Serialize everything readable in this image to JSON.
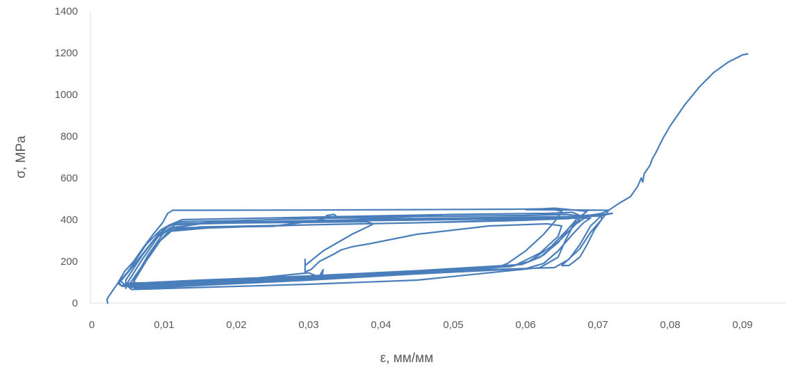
{
  "chart_data": {
    "type": "line",
    "title": "",
    "xlabel": "ε, мм/мм",
    "ylabel": "σ, MPa",
    "xlim": [
      0,
      0.095
    ],
    "ylim": [
      0,
      1400
    ],
    "x_ticks": [
      "0",
      "0,01",
      "0,02",
      "0,03",
      "0,04",
      "0,05",
      "0,06",
      "0,07",
      "0,08",
      "0,09"
    ],
    "y_ticks": [
      "0",
      "200",
      "400",
      "600",
      "800",
      "1000",
      "1200",
      "1400"
    ],
    "grid": false,
    "legend": "none",
    "colors": {
      "series": "#4a7ebb",
      "axis": "#d9d9d9",
      "text": "#595959"
    },
    "series": [
      {
        "points": [
          [
            0.0022,
            0
          ],
          [
            0.0021,
            15
          ],
          [
            0.0023,
            30
          ],
          [
            0.0028,
            55
          ],
          [
            0.0035,
            90
          ],
          [
            0.0045,
            150
          ],
          [
            0.0058,
            200
          ],
          [
            0.0072,
            270
          ],
          [
            0.0085,
            330
          ],
          [
            0.0098,
            385
          ],
          [
            0.0105,
            430
          ],
          [
            0.0112,
            445
          ],
          [
            0.016,
            445
          ],
          [
            0.03,
            446
          ],
          [
            0.045,
            448
          ],
          [
            0.058,
            450
          ],
          [
            0.0635,
            452
          ],
          [
            0.065,
            440
          ],
          [
            0.064,
            390
          ],
          [
            0.0625,
            330
          ],
          [
            0.06,
            250
          ],
          [
            0.0575,
            190
          ],
          [
            0.056,
            170
          ],
          [
            0.045,
            145
          ],
          [
            0.03,
            115
          ],
          [
            0.015,
            95
          ],
          [
            0.0042,
            80
          ],
          [
            0.0036,
            95
          ],
          [
            0.005,
            150
          ],
          [
            0.0075,
            280
          ],
          [
            0.0095,
            350
          ],
          [
            0.0108,
            375
          ],
          [
            0.012,
            382
          ],
          [
            0.02,
            384
          ],
          [
            0.03,
            387
          ],
          [
            0.038,
            390
          ],
          [
            0.039,
            380
          ],
          [
            0.036,
            330
          ],
          [
            0.032,
            250
          ],
          [
            0.0295,
            180
          ],
          [
            0.0295,
            210
          ],
          [
            0.0295,
            150
          ],
          [
            0.0303,
            160
          ],
          [
            0.0315,
            200
          ],
          [
            0.0335,
            235
          ],
          [
            0.034,
            245
          ],
          [
            0.0345,
            255
          ],
          [
            0.036,
            270
          ],
          [
            0.0385,
            285
          ],
          [
            0.045,
            330
          ],
          [
            0.055,
            370
          ],
          [
            0.063,
            380
          ],
          [
            0.065,
            370
          ],
          [
            0.0645,
            320
          ],
          [
            0.062,
            240
          ],
          [
            0.0585,
            180
          ],
          [
            0.045,
            145
          ],
          [
            0.033,
            120
          ],
          [
            0.0315,
            130
          ],
          [
            0.032,
            160
          ],
          [
            0.0318,
            120
          ],
          [
            0.03,
            145
          ],
          [
            0.02,
            110
          ],
          [
            0.01,
            95
          ],
          [
            0.004,
            85
          ],
          [
            0.0038,
            100
          ],
          [
            0.006,
            190
          ],
          [
            0.0085,
            300
          ],
          [
            0.0102,
            345
          ],
          [
            0.0112,
            360
          ],
          [
            0.013,
            362
          ],
          [
            0.025,
            368
          ],
          [
            0.032,
            400
          ],
          [
            0.0325,
            420
          ],
          [
            0.0335,
            425
          ],
          [
            0.034,
            412
          ],
          [
            0.0355,
            408
          ],
          [
            0.045,
            405
          ],
          [
            0.057,
            408
          ],
          [
            0.0665,
            410
          ],
          [
            0.0675,
            400
          ],
          [
            0.066,
            360
          ],
          [
            0.0635,
            270
          ],
          [
            0.0605,
            200
          ],
          [
            0.058,
            175
          ],
          [
            0.045,
            150
          ],
          [
            0.03,
            125
          ],
          [
            0.015,
            100
          ],
          [
            0.0045,
            90
          ],
          [
            0.004,
            105
          ],
          [
            0.0065,
            210
          ],
          [
            0.009,
            320
          ],
          [
            0.0105,
            365
          ],
          [
            0.012,
            390
          ],
          [
            0.02,
            395
          ],
          [
            0.03,
            405
          ],
          [
            0.045,
            415
          ],
          [
            0.06,
            420
          ],
          [
            0.0655,
            425
          ],
          [
            0.0685,
            415
          ],
          [
            0.067,
            380
          ],
          [
            0.065,
            310
          ],
          [
            0.0625,
            230
          ],
          [
            0.0595,
            185
          ],
          [
            0.045,
            155
          ],
          [
            0.03,
            130
          ],
          [
            0.015,
            105
          ],
          [
            0.005,
            95
          ],
          [
            0.0047,
            70
          ],
          [
            0.0047,
            110
          ],
          [
            0.007,
            230
          ],
          [
            0.0092,
            330
          ],
          [
            0.0108,
            375
          ],
          [
            0.0125,
            400
          ],
          [
            0.02,
            405
          ],
          [
            0.035,
            415
          ],
          [
            0.05,
            425
          ],
          [
            0.063,
            430
          ],
          [
            0.0665,
            435
          ],
          [
            0.0675,
            420
          ],
          [
            0.066,
            360
          ],
          [
            0.0645,
            290
          ],
          [
            0.062,
            220
          ],
          [
            0.0595,
            185
          ],
          [
            0.045,
            155
          ],
          [
            0.03,
            120
          ],
          [
            0.015,
            90
          ],
          [
            0.0055,
            75
          ],
          [
            0.0048,
            90
          ],
          [
            0.007,
            210
          ],
          [
            0.0092,
            320
          ],
          [
            0.0108,
            360
          ],
          [
            0.015,
            380
          ],
          [
            0.03,
            392
          ],
          [
            0.045,
            398
          ],
          [
            0.06,
            405
          ],
          [
            0.069,
            408
          ],
          [
            0.068,
            385
          ],
          [
            0.0665,
            330
          ],
          [
            0.0645,
            250
          ],
          [
            0.0625,
            190
          ],
          [
            0.06,
            165
          ],
          [
            0.045,
            140
          ],
          [
            0.03,
            110
          ],
          [
            0.015,
            85
          ],
          [
            0.006,
            70
          ],
          [
            0.0055,
            85
          ],
          [
            0.0075,
            200
          ],
          [
            0.0095,
            300
          ],
          [
            0.011,
            345
          ],
          [
            0.016,
            360
          ],
          [
            0.03,
            375
          ],
          [
            0.045,
            385
          ],
          [
            0.058,
            395
          ],
          [
            0.066,
            405
          ],
          [
            0.0705,
            430
          ],
          [
            0.0715,
            445
          ],
          [
            0.06,
            448
          ],
          [
            0.064,
            455
          ],
          [
            0.0685,
            440
          ],
          [
            0.067,
            400
          ],
          [
            0.0655,
            300
          ],
          [
            0.0645,
            220
          ],
          [
            0.062,
            170
          ],
          [
            0.045,
            110
          ],
          [
            0.03,
            90
          ],
          [
            0.015,
            75
          ],
          [
            0.0055,
            65
          ],
          [
            0.005,
            80
          ],
          [
            0.0072,
            190
          ],
          [
            0.0092,
            290
          ],
          [
            0.0108,
            350
          ],
          [
            0.015,
            365
          ],
          [
            0.03,
            375
          ],
          [
            0.045,
            385
          ],
          [
            0.055,
            395
          ],
          [
            0.065,
            410
          ],
          [
            0.068,
            420
          ],
          [
            0.0705,
            425
          ],
          [
            0.072,
            430
          ],
          [
            0.0705,
            420
          ],
          [
            0.069,
            370
          ],
          [
            0.0675,
            280
          ],
          [
            0.066,
            210
          ],
          [
            0.064,
            170
          ],
          [
            0.045,
            150
          ],
          [
            0.03,
            130
          ],
          [
            0.015,
            110
          ],
          [
            0.006,
            95
          ],
          [
            0.0058,
            110
          ],
          [
            0.0078,
            230
          ],
          [
            0.0098,
            330
          ],
          [
            0.0115,
            375
          ],
          [
            0.016,
            385
          ],
          [
            0.03,
            395
          ],
          [
            0.045,
            405
          ],
          [
            0.06,
            412
          ],
          [
            0.068,
            415
          ],
          [
            0.0705,
            418
          ],
          [
            0.0705,
            420
          ],
          [
            0.0705,
            400
          ],
          [
            0.0695,
            350
          ],
          [
            0.0685,
            280
          ],
          [
            0.0675,
            220
          ],
          [
            0.066,
            180
          ],
          [
            0.065,
            180
          ],
          [
            0.0675,
            260
          ],
          [
            0.069,
            340
          ],
          [
            0.0705,
            400
          ],
          [
            0.0715,
            445
          ],
          [
            0.073,
            480
          ],
          [
            0.0745,
            510
          ],
          [
            0.0755,
            560
          ],
          [
            0.076,
            600
          ],
          [
            0.0762,
            580
          ],
          [
            0.0764,
            620
          ],
          [
            0.0772,
            660
          ],
          [
            0.0775,
            690
          ],
          [
            0.078,
            720
          ],
          [
            0.079,
            790
          ],
          [
            0.08,
            850
          ],
          [
            0.082,
            950
          ],
          [
            0.084,
            1035
          ],
          [
            0.086,
            1105
          ],
          [
            0.088,
            1155
          ],
          [
            0.09,
            1190
          ],
          [
            0.0907,
            1195
          ]
        ]
      }
    ]
  }
}
